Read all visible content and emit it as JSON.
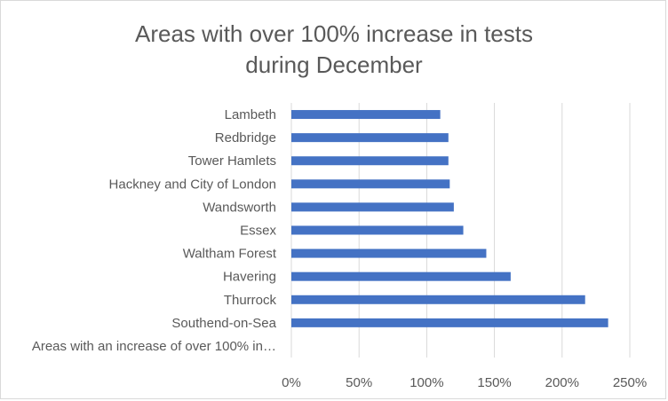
{
  "chart_data": {
    "type": "bar",
    "orientation": "horizontal",
    "title": "Areas with over 100% increase in tests during December",
    "categories": [
      "Lambeth",
      "Redbridge",
      "Tower Hamlets",
      "Hackney and City of London",
      "Wandsworth",
      "Essex",
      "Waltham Forest",
      "Havering",
      "Thurrock",
      "Southend-on-Sea",
      "Areas with an increase of over 100% in…"
    ],
    "values": [
      110,
      116,
      116,
      117,
      120,
      127,
      144,
      162,
      217,
      234,
      null
    ],
    "xlim": [
      0,
      250
    ],
    "xticks": [
      0,
      50,
      100,
      150,
      200,
      250
    ],
    "xtick_labels": [
      "0%",
      "50%",
      "100%",
      "150%",
      "200%",
      "250%"
    ],
    "xlabel": "",
    "ylabel": "",
    "grid": "vertical",
    "legend": "none",
    "bar_color": "#4472c4",
    "grid_color": "#d9d9d9",
    "text_color": "#595959"
  }
}
